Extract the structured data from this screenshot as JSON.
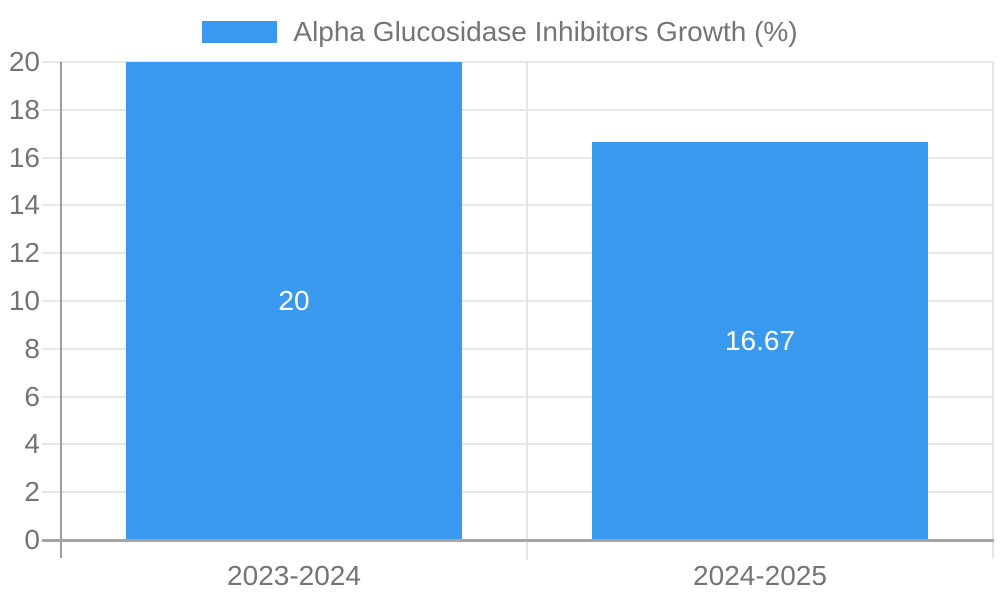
{
  "colors": {
    "bar": "#3899ee",
    "gridline": "#e6e6e6",
    "axis_line": "#9c9c9c",
    "baseline": "#a5a5a5",
    "tick_label": "#757575",
    "bar_value_label": "#ffffff",
    "background": "#ffffff"
  },
  "chart_data": {
    "type": "bar",
    "title": "",
    "legend_entries": [
      "Alpha Glucosidase Inhibitors Growth (%)"
    ],
    "legend_position": "top",
    "categories": [
      "2023-2024",
      "2024-2025"
    ],
    "series": [
      {
        "name": "Alpha Glucosidase Inhibitors Growth (%)",
        "values": [
          20,
          16.67
        ],
        "color": "#3899ee"
      }
    ],
    "value_labels": [
      "20",
      "16.67"
    ],
    "value_label_placement": "inside-center",
    "xlabel": "",
    "ylabel": "",
    "ylim": [
      0,
      20
    ],
    "yticks": [
      0,
      2,
      4,
      6,
      8,
      10,
      12,
      14,
      16,
      18,
      20
    ],
    "grid": true
  }
}
